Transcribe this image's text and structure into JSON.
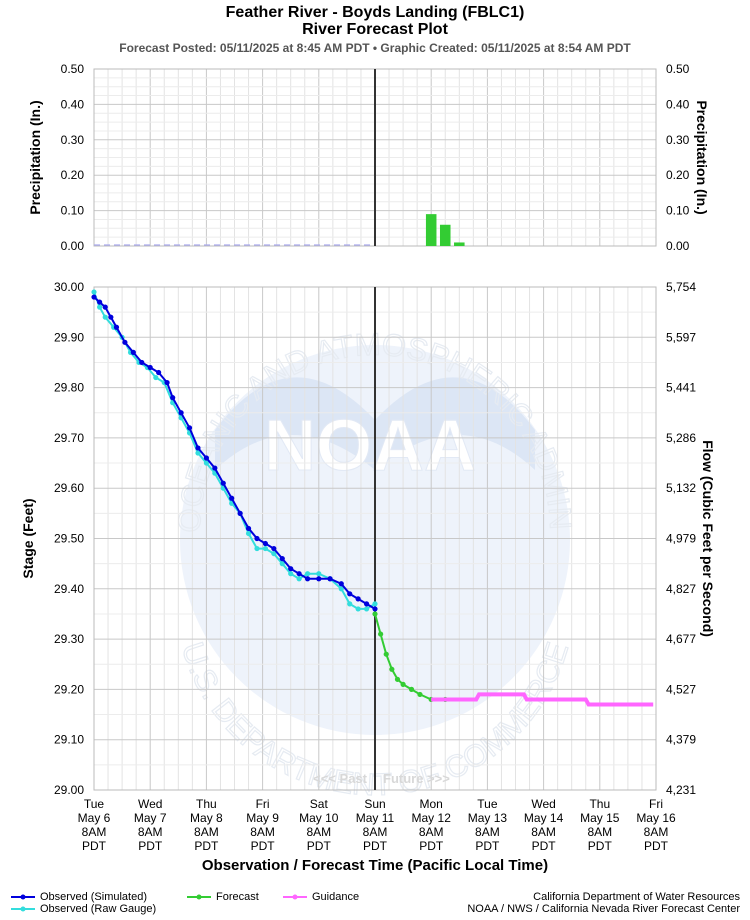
{
  "header": {
    "title": "Feather River - Boyds Landing (FBLC1)",
    "subtitle": "River Forecast Plot",
    "posted": "Forecast Posted: 05/11/2025 at 8:45 AM PDT  •  Graphic Created: 05/11/2025 at 8:54 AM PDT"
  },
  "chart_data": [
    {
      "type": "bar",
      "name": "precipitation",
      "ylabel": "Precipitation (In.)",
      "ylabel_right": "Precipitation (In.)",
      "ylim": [
        0,
        0.5
      ],
      "yticks": [
        "0.00",
        "0.10",
        "0.20",
        "0.30",
        "0.40",
        "0.50"
      ],
      "observed_baseline": 0.0,
      "bars": [
        {
          "day": 6.0,
          "value": 0.09
        },
        {
          "day": 6.25,
          "value": 0.06
        },
        {
          "day": 6.5,
          "value": 0.01
        }
      ],
      "colors": {
        "bars": "#33cc33",
        "observed": "#aaaaee"
      }
    },
    {
      "type": "line",
      "name": "stage",
      "ylabel": "Stage (Feet)",
      "ylabel_right": "Flow (Cubic Feet per Second)",
      "xlabel": "Observation / Forecast Time (Pacific Local Time)",
      "ylim": [
        29.0,
        30.0
      ],
      "yticks": [
        "29.00",
        "29.10",
        "29.20",
        "29.30",
        "29.40",
        "29.50",
        "29.60",
        "29.70",
        "29.80",
        "29.90",
        "30.00"
      ],
      "yticks_right": [
        "4,231",
        "4,379",
        "4,527",
        "4,677",
        "4,827",
        "4,979",
        "5,132",
        "5,286",
        "5,441",
        "5,597",
        "5,754"
      ],
      "x_labels": [
        [
          "Tue",
          "May 6",
          "8AM",
          "PDT"
        ],
        [
          "Wed",
          "May 7",
          "8AM",
          "PDT"
        ],
        [
          "Thu",
          "May 8",
          "8AM",
          "PDT"
        ],
        [
          "Fri",
          "May 9",
          "8AM",
          "PDT"
        ],
        [
          "Sat",
          "May 10",
          "8AM",
          "PDT"
        ],
        [
          "Sun",
          "May 11",
          "8AM",
          "PDT"
        ],
        [
          "Mon",
          "May 12",
          "8AM",
          "PDT"
        ],
        [
          "Tue",
          "May 13",
          "8AM",
          "PDT"
        ],
        [
          "Wed",
          "May 14",
          "8AM",
          "PDT"
        ],
        [
          "Thu",
          "May 15",
          "8AM",
          "PDT"
        ],
        [
          "Fri",
          "May 16",
          "8AM",
          "PDT"
        ]
      ],
      "now_day": 5.0,
      "past_label": "<<< Past",
      "future_label": "Future >>>",
      "series": [
        {
          "name": "Observed (Simulated)",
          "color": "#0000dd",
          "points": [
            [
              0.0,
              29.98
            ],
            [
              0.1,
              29.97
            ],
            [
              0.2,
              29.96
            ],
            [
              0.3,
              29.94
            ],
            [
              0.4,
              29.92
            ],
            [
              0.55,
              29.89
            ],
            [
              0.7,
              29.87
            ],
            [
              0.85,
              29.85
            ],
            [
              1.0,
              29.84
            ],
            [
              1.15,
              29.83
            ],
            [
              1.3,
              29.81
            ],
            [
              1.4,
              29.78
            ],
            [
              1.55,
              29.75
            ],
            [
              1.7,
              29.72
            ],
            [
              1.85,
              29.68
            ],
            [
              2.0,
              29.66
            ],
            [
              2.15,
              29.64
            ],
            [
              2.3,
              29.61
            ],
            [
              2.45,
              29.58
            ],
            [
              2.6,
              29.55
            ],
            [
              2.75,
              29.52
            ],
            [
              2.9,
              29.5
            ],
            [
              3.05,
              29.49
            ],
            [
              3.2,
              29.48
            ],
            [
              3.35,
              29.46
            ],
            [
              3.5,
              29.44
            ],
            [
              3.65,
              29.43
            ],
            [
              3.8,
              29.42
            ],
            [
              4.0,
              29.42
            ],
            [
              4.2,
              29.42
            ],
            [
              4.4,
              29.41
            ],
            [
              4.55,
              29.39
            ],
            [
              4.7,
              29.38
            ],
            [
              4.85,
              29.37
            ],
            [
              5.0,
              29.36
            ]
          ]
        },
        {
          "name": "Observed (Raw Gauge)",
          "color": "#33dddd",
          "points": [
            [
              0.0,
              29.99
            ],
            [
              0.1,
              29.96
            ],
            [
              0.2,
              29.94
            ],
            [
              0.35,
              29.92
            ],
            [
              0.5,
              29.9
            ],
            [
              0.65,
              29.87
            ],
            [
              0.8,
              29.85
            ],
            [
              0.95,
              29.84
            ],
            [
              1.1,
              29.82
            ],
            [
              1.25,
              29.81
            ],
            [
              1.4,
              29.77
            ],
            [
              1.55,
              29.74
            ],
            [
              1.7,
              29.71
            ],
            [
              1.85,
              29.67
            ],
            [
              2.0,
              29.65
            ],
            [
              2.15,
              29.63
            ],
            [
              2.3,
              29.6
            ],
            [
              2.45,
              29.57
            ],
            [
              2.6,
              29.55
            ],
            [
              2.75,
              29.51
            ],
            [
              2.9,
              29.48
            ],
            [
              3.05,
              29.48
            ],
            [
              3.2,
              29.47
            ],
            [
              3.35,
              29.45
            ],
            [
              3.5,
              29.43
            ],
            [
              3.65,
              29.42
            ],
            [
              3.8,
              29.43
            ],
            [
              4.0,
              29.43
            ],
            [
              4.2,
              29.42
            ],
            [
              4.4,
              29.4
            ],
            [
              4.55,
              29.37
            ],
            [
              4.7,
              29.36
            ],
            [
              4.85,
              29.36
            ],
            [
              5.0,
              29.37
            ]
          ]
        },
        {
          "name": "Forecast",
          "color": "#33cc33",
          "points": [
            [
              5.0,
              29.35
            ],
            [
              5.1,
              29.31
            ],
            [
              5.2,
              29.27
            ],
            [
              5.3,
              29.24
            ],
            [
              5.4,
              29.22
            ],
            [
              5.5,
              29.21
            ],
            [
              5.65,
              29.2
            ],
            [
              5.8,
              29.19
            ],
            [
              6.0,
              29.18
            ],
            [
              6.25,
              29.18
            ]
          ]
        },
        {
          "name": "Guidance",
          "color": "#ff66ff",
          "points": [
            [
              6.0,
              29.18
            ],
            [
              6.8,
              29.18
            ],
            [
              6.85,
              29.19
            ],
            [
              7.65,
              29.19
            ],
            [
              7.7,
              29.18
            ],
            [
              8.75,
              29.18
            ],
            [
              8.8,
              29.17
            ],
            [
              9.95,
              29.17
            ]
          ]
        }
      ]
    }
  ],
  "legend": [
    {
      "label": "Observed (Simulated)",
      "color": "#0000dd"
    },
    {
      "label": "Observed (Raw Gauge)",
      "color": "#33dddd"
    },
    {
      "label": "Forecast",
      "color": "#33cc33"
    },
    {
      "label": "Guidance",
      "color": "#ff66ff"
    }
  ],
  "credits": {
    "line1": "California Department of Water Resources",
    "line2": "NOAA / NWS / California Nevada River Forecast Center"
  },
  "watermark": {
    "logo_text": "NOAA",
    "ring_top": "NATIONAL OCEANIC AND ATMOSPHERIC ADMINISTRATION",
    "ring_bottom": "U.S. DEPARTMENT OF COMMERCE"
  }
}
